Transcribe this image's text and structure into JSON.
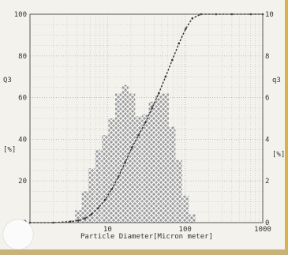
{
  "chart_data": {
    "type": "bar",
    "title": "",
    "xlabel": "Particle Diameter[Micron meter]",
    "ylabel_left": "Q3",
    "ylabel_left_unit": "[%]",
    "ylabel_right": "q3",
    "ylabel_right_unit": "[%]",
    "x_scale": "log",
    "xlim": [
      1,
      1000
    ],
    "ylim_left": [
      0,
      100
    ],
    "ylim_right": [
      0,
      10
    ],
    "x_ticks": [
      "1",
      "10",
      "100",
      "1000"
    ],
    "y_ticks_left": [
      "0",
      "20",
      "40",
      "60",
      "80",
      "100"
    ],
    "y_ticks_right": [
      "0",
      "2",
      "4",
      "6",
      "8",
      "10"
    ],
    "grid": true,
    "series": [
      {
        "kind": "histogram",
        "x": [
          3.3,
          4.2,
          5.1,
          6.2,
          7.6,
          9.3,
          11.3,
          13.8,
          16.9,
          20.6,
          25.1,
          30.7,
          37.4,
          45.7,
          55.8,
          68.1,
          83.1,
          101.4,
          123.7
        ],
        "values": [
          0.1,
          0.6,
          1.5,
          2.6,
          3.5,
          4.2,
          5.0,
          6.2,
          6.6,
          6.2,
          5.1,
          5.2,
          5.8,
          6.1,
          6.2,
          4.6,
          3.0,
          1.3,
          0.4
        ]
      },
      {
        "kind": "cumulative",
        "x": [
          1,
          2,
          3.3,
          4.2,
          5.1,
          6.2,
          7.6,
          9.3,
          11.3,
          13.8,
          16.9,
          20.6,
          25.1,
          30.7,
          37.4,
          45.7,
          55.8,
          68.1,
          83.1,
          101.4,
          123.7,
          160,
          250,
          400,
          700,
          1000
        ],
        "values": [
          0,
          0,
          0.5,
          1,
          2,
          4,
          7,
          11,
          16,
          22,
          29,
          36,
          42,
          48,
          55,
          62,
          70,
          78,
          86,
          93,
          98,
          100,
          100,
          100,
          100,
          100
        ]
      }
    ]
  }
}
